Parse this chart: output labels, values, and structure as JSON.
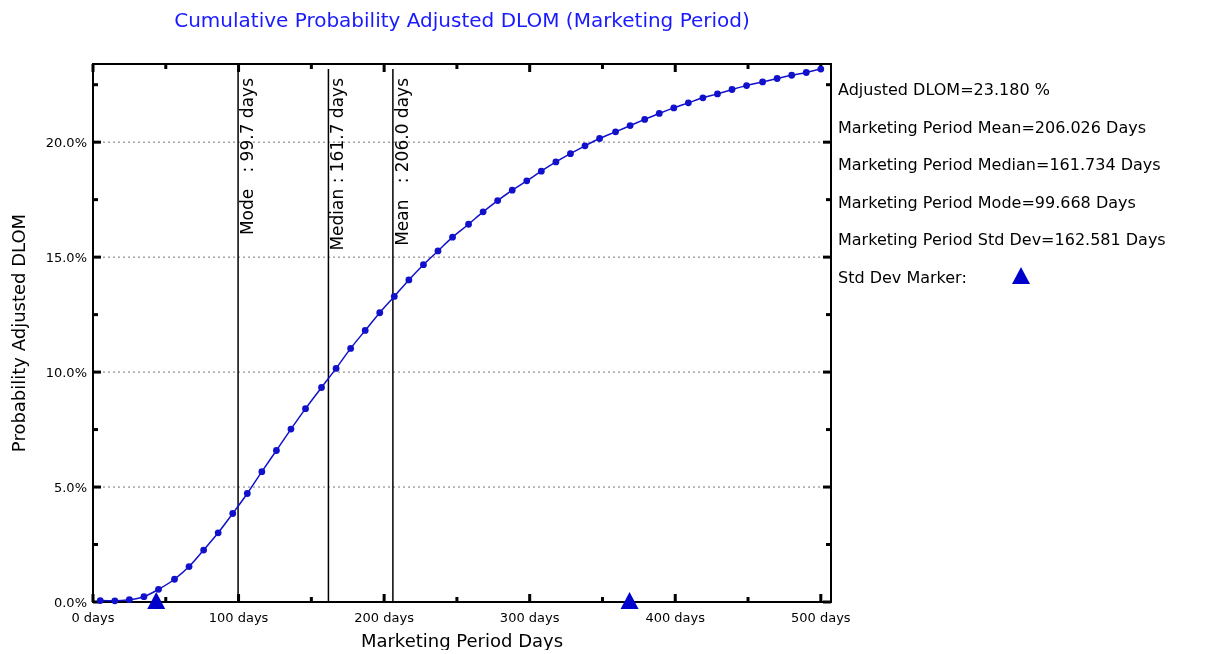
{
  "chart_data": {
    "type": "line",
    "title": "Cumulative Probability Adjusted DLOM (Marketing Period)",
    "xlabel": "Marketing Period Days",
    "ylabel": "Probability Adjusted DLOM",
    "xlim": [
      0,
      507
    ],
    "ylim": [
      0,
      23.4
    ],
    "xticks": [
      {
        "value": 0,
        "label": "0 days"
      },
      {
        "value": 50,
        "label": null
      },
      {
        "value": 100,
        "label": "100 days"
      },
      {
        "value": 150,
        "label": null
      },
      {
        "value": 200,
        "label": "200 days"
      },
      {
        "value": 250,
        "label": null
      },
      {
        "value": 300,
        "label": "300 days"
      },
      {
        "value": 350,
        "label": null
      },
      {
        "value": 400,
        "label": "400 days"
      },
      {
        "value": 450,
        "label": null
      },
      {
        "value": 500,
        "label": "500 days"
      }
    ],
    "yticks": [
      {
        "value": 0,
        "label": "0.0%"
      },
      {
        "value": 2.5,
        "label": null
      },
      {
        "value": 5,
        "label": "5.0%"
      },
      {
        "value": 7.5,
        "label": null
      },
      {
        "value": 10,
        "label": "10.0%"
      },
      {
        "value": 12.5,
        "label": null
      },
      {
        "value": 15,
        "label": "15.0%"
      },
      {
        "value": 17.5,
        "label": null
      },
      {
        "value": 20,
        "label": "20.0%"
      },
      {
        "value": 22.5,
        "label": null
      }
    ],
    "grid": "y",
    "series": [
      {
        "type": "line",
        "color": "#1111cc",
        "marker": "circle",
        "line_style": "solid",
        "x": [
          5,
          15,
          25,
          35,
          45,
          56,
          66,
          76,
          86,
          96,
          106,
          116,
          126,
          136,
          146,
          157,
          167,
          177,
          187,
          197,
          207,
          217,
          227,
          237,
          247,
          258,
          268,
          278,
          288,
          298,
          308,
          318,
          328,
          338,
          348,
          359,
          369,
          379,
          389,
          399,
          409,
          419,
          429,
          439,
          449,
          460,
          470,
          480,
          490,
          500
        ],
        "values": [
          0.06,
          0.05,
          0.1,
          0.23,
          0.55,
          0.99,
          1.54,
          2.26,
          3.01,
          3.85,
          4.72,
          5.67,
          6.59,
          7.52,
          8.41,
          9.33,
          10.16,
          11.03,
          11.81,
          12.58,
          13.29,
          14.01,
          14.67,
          15.27,
          15.87,
          16.43,
          16.97,
          17.46,
          17.91,
          18.32,
          18.74,
          19.14,
          19.5,
          19.84,
          20.16,
          20.45,
          20.72,
          20.99,
          21.25,
          21.49,
          21.71,
          21.93,
          22.1,
          22.29,
          22.46,
          22.62,
          22.77,
          22.91,
          23.03,
          23.18
        ]
      },
      {
        "type": "scatter",
        "color": "#0000cc",
        "marker": "triangle",
        "x": [
          43.445,
          368.607
        ],
        "values": [
          0,
          0
        ]
      }
    ],
    "ref_lines": [
      {
        "axis": "x",
        "value": 99.668,
        "label": "Mode   : 99.7 days",
        "color": "#000000",
        "line_style": "solid"
      },
      {
        "axis": "x",
        "value": 161.734,
        "label": "Median : 161.7 days",
        "color": "#000000",
        "line_style": "solid"
      },
      {
        "axis": "x",
        "value": 206.026,
        "label": "Mean   : 206.0 days",
        "color": "#000000",
        "line_style": "solid"
      }
    ],
    "annotations": [
      "Adjusted DLOM=23.180 %",
      "Marketing Period Mean=206.026 Days",
      "Marketing Period Median=161.734 Days",
      "Marketing Period Mode=99.668 Days",
      "Marketing Period Std Dev=162.581 Days",
      "Std Dev Marker:"
    ]
  }
}
